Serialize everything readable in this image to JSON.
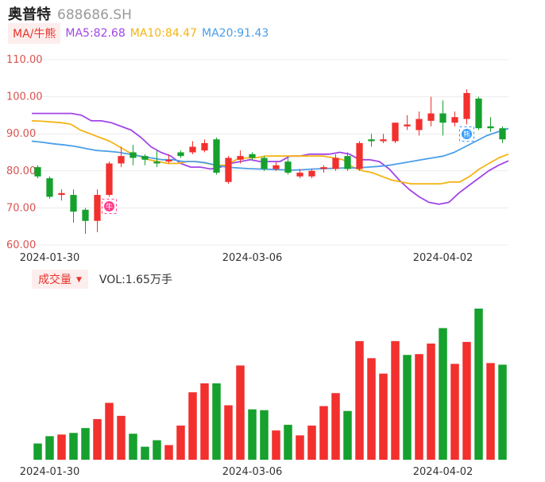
{
  "stock": {
    "name": "奥普特",
    "code": "688686.SH"
  },
  "ma_legend": {
    "mode": "MA/牛熊",
    "items": [
      {
        "text": "MA5:82.68",
        "color": "#a146e8"
      },
      {
        "text": "MA10:84.47",
        "color": "#f5b414"
      },
      {
        "text": "MA20:91.43",
        "color": "#4b9ee8"
      }
    ]
  },
  "volume_legend": {
    "mode": "成交量",
    "value_text": "VOL:1.65万手"
  },
  "colors": {
    "up": "#f2302e",
    "down": "#16a02e",
    "grid": "#ececec",
    "axis_text_price": "#d9534f",
    "axis_text_date": "#333333",
    "marker_pink": "#ff3d8b",
    "marker_blue": "#2f9bff"
  },
  "markers": [
    {
      "label": "牛",
      "index": 6,
      "position": "below"
    },
    {
      "label": "熊",
      "index": 36,
      "position": "below"
    }
  ],
  "chart_data": {
    "type": "candlestick",
    "price_axis": {
      "ylim": [
        60,
        110
      ],
      "ticks": [
        "60.00",
        "70.00",
        "80.00",
        "90.00",
        "100.00",
        "110.00"
      ],
      "grid": true
    },
    "x_tick_labels": [
      {
        "index": 1,
        "label": "2024-01-30"
      },
      {
        "index": 18,
        "label": "2024-03-06"
      },
      {
        "index": 34,
        "label": "2024-04-02"
      }
    ],
    "candles": [
      {
        "open": 81.0,
        "close": 78.5,
        "high": 81.5,
        "low": 78.0
      },
      {
        "open": 78.0,
        "close": 73.0,
        "high": 78.5,
        "low": 72.5
      },
      {
        "open": 73.5,
        "close": 74.0,
        "high": 75.0,
        "low": 72.0
      },
      {
        "open": 73.5,
        "close": 69.0,
        "high": 75.0,
        "low": 66.0
      },
      {
        "open": 69.5,
        "close": 66.5,
        "high": 70.0,
        "low": 63.0
      },
      {
        "open": 66.5,
        "close": 73.5,
        "high": 75.0,
        "low": 63.5
      },
      {
        "open": 73.5,
        "close": 82.0,
        "high": 82.5,
        "low": 73.0
      },
      {
        "open": 82.0,
        "close": 84.0,
        "high": 86.5,
        "low": 81.0
      },
      {
        "open": 85.0,
        "close": 83.5,
        "high": 87.0,
        "low": 81.5
      },
      {
        "open": 84.0,
        "close": 83.0,
        "high": 84.5,
        "low": 81.5
      },
      {
        "open": 82.5,
        "close": 82.0,
        "high": 85.5,
        "low": 81.0
      },
      {
        "open": 82.5,
        "close": 83.0,
        "high": 84.5,
        "low": 82.0
      },
      {
        "open": 85.0,
        "close": 84.0,
        "high": 85.5,
        "low": 83.5
      },
      {
        "open": 85.0,
        "close": 86.5,
        "high": 88.0,
        "low": 84.5
      },
      {
        "open": 85.5,
        "close": 87.5,
        "high": 88.5,
        "low": 85.0
      },
      {
        "open": 88.5,
        "close": 79.5,
        "high": 89.0,
        "low": 79.0
      },
      {
        "open": 77.0,
        "close": 83.5,
        "high": 84.0,
        "low": 76.5
      },
      {
        "open": 83.0,
        "close": 84.0,
        "high": 85.5,
        "low": 82.0
      },
      {
        "open": 84.5,
        "close": 83.5,
        "high": 85.0,
        "low": 83.0
      },
      {
        "open": 83.5,
        "close": 80.5,
        "high": 84.0,
        "low": 80.0
      },
      {
        "open": 80.5,
        "close": 81.5,
        "high": 82.5,
        "low": 80.0
      },
      {
        "open": 82.5,
        "close": 79.5,
        "high": 83.5,
        "low": 79.0
      },
      {
        "open": 78.5,
        "close": 79.5,
        "high": 80.5,
        "low": 78.0
      },
      {
        "open": 78.5,
        "close": 80.0,
        "high": 80.5,
        "low": 78.0
      },
      {
        "open": 80.5,
        "close": 81.0,
        "high": 81.5,
        "low": 79.5
      },
      {
        "open": 80.5,
        "close": 83.5,
        "high": 84.5,
        "low": 80.0
      },
      {
        "open": 84.0,
        "close": 80.5,
        "high": 85.0,
        "low": 80.0
      },
      {
        "open": 80.5,
        "close": 87.5,
        "high": 88.0,
        "low": 80.0
      },
      {
        "open": 88.5,
        "close": 88.0,
        "high": 90.0,
        "low": 86.5
      },
      {
        "open": 88.0,
        "close": 88.5,
        "high": 90.0,
        "low": 87.5
      },
      {
        "open": 88.0,
        "close": 93.0,
        "high": 93.0,
        "low": 87.5
      },
      {
        "open": 92.0,
        "close": 92.5,
        "high": 95.0,
        "low": 91.0
      },
      {
        "open": 91.0,
        "close": 94.0,
        "high": 96.0,
        "low": 89.5
      },
      {
        "open": 93.5,
        "close": 95.5,
        "high": 100.0,
        "low": 92.0
      },
      {
        "open": 95.5,
        "close": 93.0,
        "high": 99.0,
        "low": 89.5
      },
      {
        "open": 93.0,
        "close": 94.5,
        "high": 96.0,
        "low": 92.0
      },
      {
        "open": 94.0,
        "close": 101.0,
        "high": 102.0,
        "low": 92.5
      },
      {
        "open": 99.5,
        "close": 91.5,
        "high": 100.0,
        "low": 91.0
      },
      {
        "open": 92.0,
        "close": 91.5,
        "high": 94.5,
        "low": 90.5
      },
      {
        "open": 91.5,
        "close": 88.5,
        "high": 92.0,
        "low": 87.5
      }
    ],
    "ma_lines": [
      {
        "name": "MA5",
        "color": "#a146e8",
        "values": [
          95.5,
          95.5,
          95.5,
          95.5,
          95.5,
          95.0,
          93.5,
          93.5,
          93.0,
          92.0,
          91.0,
          89.0,
          86.5,
          85.0,
          84.0,
          82.0,
          81.0,
          81.0,
          80.5,
          81.0,
          82.0,
          82.5,
          83.0,
          82.5,
          82.5,
          82.5,
          84.0,
          84.0,
          84.5,
          84.5,
          84.5,
          85.0,
          84.5,
          83.0,
          83.0,
          82.5,
          80.5,
          77.5,
          75.0,
          73.0,
          71.5,
          71.0,
          71.5,
          74.0,
          76.0,
          78.0,
          80.0,
          81.5,
          82.7
        ]
      },
      {
        "name": "MA10",
        "color": "#f5b414",
        "values": [
          93.5,
          93.4,
          93.2,
          93.0,
          92.6,
          91.0,
          90.0,
          89.0,
          88.0,
          86.5,
          85.0,
          84.0,
          83.0,
          82.5,
          82.0,
          82.0,
          82.5,
          82.5,
          82.0,
          81.5,
          81.5,
          83.0,
          83.5,
          83.5,
          84.0,
          84.0,
          84.0,
          84.0,
          84.0,
          84.0,
          84.0,
          83.5,
          83.0,
          81.0,
          80.0,
          79.5,
          78.5,
          77.5,
          77.0,
          76.5,
          76.5,
          76.5,
          76.5,
          77.0,
          77.0,
          78.5,
          80.5,
          82.0,
          83.5,
          84.5
        ]
      },
      {
        "name": "MA20",
        "color": "#4b9ee8",
        "values": [
          88.0,
          87.7,
          87.3,
          87.0,
          86.6,
          86.0,
          85.5,
          85.3,
          85.0,
          84.5,
          84.0,
          83.5,
          83.0,
          83.0,
          82.5,
          82.5,
          82.2,
          81.5,
          81.0,
          80.8,
          80.6,
          80.5,
          80.4,
          80.3,
          80.2,
          80.3,
          80.5,
          80.6,
          80.7,
          80.8,
          80.8,
          81.0,
          81.2,
          81.5,
          82.0,
          82.5,
          83.0,
          83.5,
          84.0,
          85.0,
          86.5,
          88.0,
          89.5,
          90.5,
          91.43
        ]
      }
    ],
    "volume": [
      {
        "v": 20,
        "up": false
      },
      {
        "v": 29,
        "up": false
      },
      {
        "v": 31,
        "up": true
      },
      {
        "v": 33,
        "up": false
      },
      {
        "v": 39,
        "up": false
      },
      {
        "v": 50,
        "up": true
      },
      {
        "v": 70,
        "up": true
      },
      {
        "v": 54,
        "up": true
      },
      {
        "v": 32,
        "up": false
      },
      {
        "v": 16,
        "up": false
      },
      {
        "v": 24,
        "up": false
      },
      {
        "v": 18,
        "up": true
      },
      {
        "v": 42,
        "up": true
      },
      {
        "v": 83,
        "up": true
      },
      {
        "v": 94,
        "up": true
      },
      {
        "v": 94,
        "up": false
      },
      {
        "v": 67,
        "up": true
      },
      {
        "v": 116,
        "up": true
      },
      {
        "v": 62,
        "up": false
      },
      {
        "v": 61,
        "up": false
      },
      {
        "v": 36,
        "up": true
      },
      {
        "v": 43,
        "up": false
      },
      {
        "v": 30,
        "up": true
      },
      {
        "v": 42,
        "up": true
      },
      {
        "v": 66,
        "up": true
      },
      {
        "v": 82,
        "up": true
      },
      {
        "v": 60,
        "up": false
      },
      {
        "v": 146,
        "up": true
      },
      {
        "v": 125,
        "up": true
      },
      {
        "v": 106,
        "up": true
      },
      {
        "v": 146,
        "up": true
      },
      {
        "v": 129,
        "up": false
      },
      {
        "v": 130,
        "up": true
      },
      {
        "v": 143,
        "up": true
      },
      {
        "v": 162,
        "up": false
      },
      {
        "v": 118,
        "up": true
      },
      {
        "v": 145,
        "up": true
      },
      {
        "v": 186,
        "up": false
      },
      {
        "v": 119,
        "up": true
      },
      {
        "v": 117,
        "up": false
      }
    ]
  }
}
